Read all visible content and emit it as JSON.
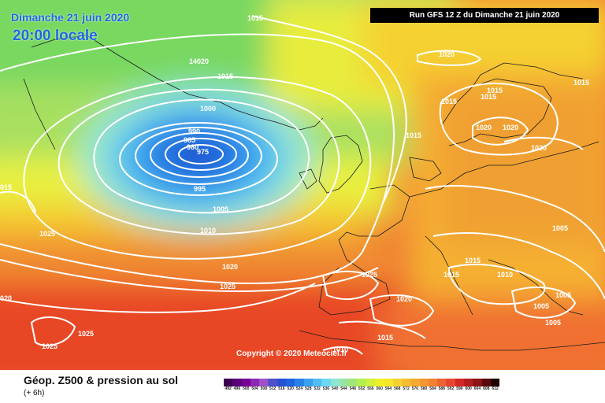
{
  "header": {
    "date": "Dimanche 21 juin 2020",
    "time": "20:00 locale",
    "run": "Run GFS 12 Z du Dimanche 21 juin 2020"
  },
  "footer": {
    "product": "Géop. Z500 & pression au sol",
    "step": "(+ 6h)",
    "copyright": "Copyright © 2020 Meteociel.fr"
  },
  "scale": {
    "labels": [
      "492",
      "496",
      "500",
      "504",
      "508",
      "512",
      "516",
      "520",
      "524",
      "528",
      "532",
      "536",
      "540",
      "544",
      "548",
      "552",
      "556",
      "560",
      "564",
      "568",
      "572",
      "576",
      "580",
      "584",
      "588",
      "592",
      "596",
      "600",
      "604",
      "608",
      "612"
    ],
    "colors": [
      "#3c0050",
      "#5a0078",
      "#780096",
      "#8c28b4",
      "#a050c8",
      "#5050c8",
      "#2850d2",
      "#1e64dc",
      "#2882e6",
      "#3ca0f0",
      "#50bef0",
      "#6ed8f0",
      "#8ce6d2",
      "#96e6a0",
      "#a0e678",
      "#b4f050",
      "#d2f03c",
      "#f0f028",
      "#f5e628",
      "#f5d232",
      "#f5be32",
      "#f5aa32",
      "#f59632",
      "#f08232",
      "#eb6432",
      "#e64632",
      "#d22828",
      "#b41e1e",
      "#8c1414",
      "#5a0a0a",
      "#1e0000"
    ]
  },
  "isobars": [
    {
      "label": "1015"
    },
    {
      "label": "1020"
    },
    {
      "label": "1015"
    },
    {
      "label": "1015"
    },
    {
      "label": "1015"
    },
    {
      "label": "1015"
    },
    {
      "label": "1015"
    },
    {
      "label": "1020"
    },
    {
      "label": "1020"
    },
    {
      "label": "1020"
    },
    {
      "label": "1005"
    },
    {
      "label": "1015"
    },
    {
      "label": "1010"
    },
    {
      "label": "1005"
    },
    {
      "label": "1005"
    },
    {
      "label": "1005"
    },
    {
      "label": "1015"
    },
    {
      "label": "1020"
    },
    {
      "label": "1025"
    },
    {
      "label": "1015"
    },
    {
      "label": "1010"
    },
    {
      "label": "14020"
    },
    {
      "label": "1015"
    },
    {
      "label": "1000"
    },
    {
      "label": "990"
    },
    {
      "label": "985"
    },
    {
      "label": "980"
    },
    {
      "label": "975"
    },
    {
      "label": "995"
    },
    {
      "label": "1005"
    },
    {
      "label": "1010"
    },
    {
      "label": "1020"
    },
    {
      "label": "1025"
    },
    {
      "label": "1025"
    },
    {
      "label": "1025"
    },
    {
      "label": "1025"
    },
    {
      "label": "020"
    },
    {
      "label": "015"
    }
  ]
}
